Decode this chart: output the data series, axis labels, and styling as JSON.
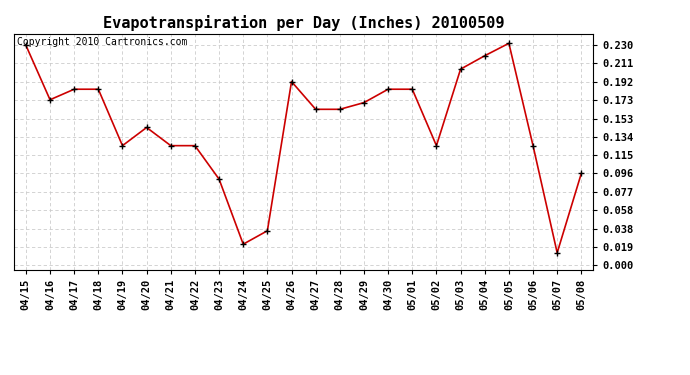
{
  "title": "Evapotranspiration per Day (Inches) 20100509",
  "copyright_text": "Copyright 2010 Cartronics.com",
  "x_labels": [
    "04/15",
    "04/16",
    "04/17",
    "04/18",
    "04/19",
    "04/20",
    "04/21",
    "04/22",
    "04/23",
    "04/24",
    "04/25",
    "04/26",
    "04/27",
    "04/28",
    "04/29",
    "04/30",
    "05/01",
    "05/02",
    "05/03",
    "05/04",
    "05/05",
    "05/06",
    "05/07",
    "05/08"
  ],
  "y_values": [
    0.23,
    0.173,
    0.184,
    0.184,
    0.125,
    0.144,
    0.125,
    0.125,
    0.09,
    0.022,
    0.036,
    0.192,
    0.163,
    0.163,
    0.17,
    0.184,
    0.184,
    0.125,
    0.205,
    0.219,
    0.232,
    0.125,
    0.013,
    0.096
  ],
  "line_color": "#cc0000",
  "marker": "+",
  "marker_size": 5,
  "marker_color": "#000000",
  "y_ticks": [
    0.0,
    0.019,
    0.038,
    0.058,
    0.077,
    0.096,
    0.115,
    0.134,
    0.153,
    0.173,
    0.192,
    0.211,
    0.23
  ],
  "ylim": [
    -0.005,
    0.242
  ],
  "grid_color": "#cccccc",
  "background_color": "#ffffff",
  "plot_bg_color": "#ffffff",
  "title_fontsize": 11,
  "copyright_fontsize": 7,
  "tick_fontsize": 7.5
}
